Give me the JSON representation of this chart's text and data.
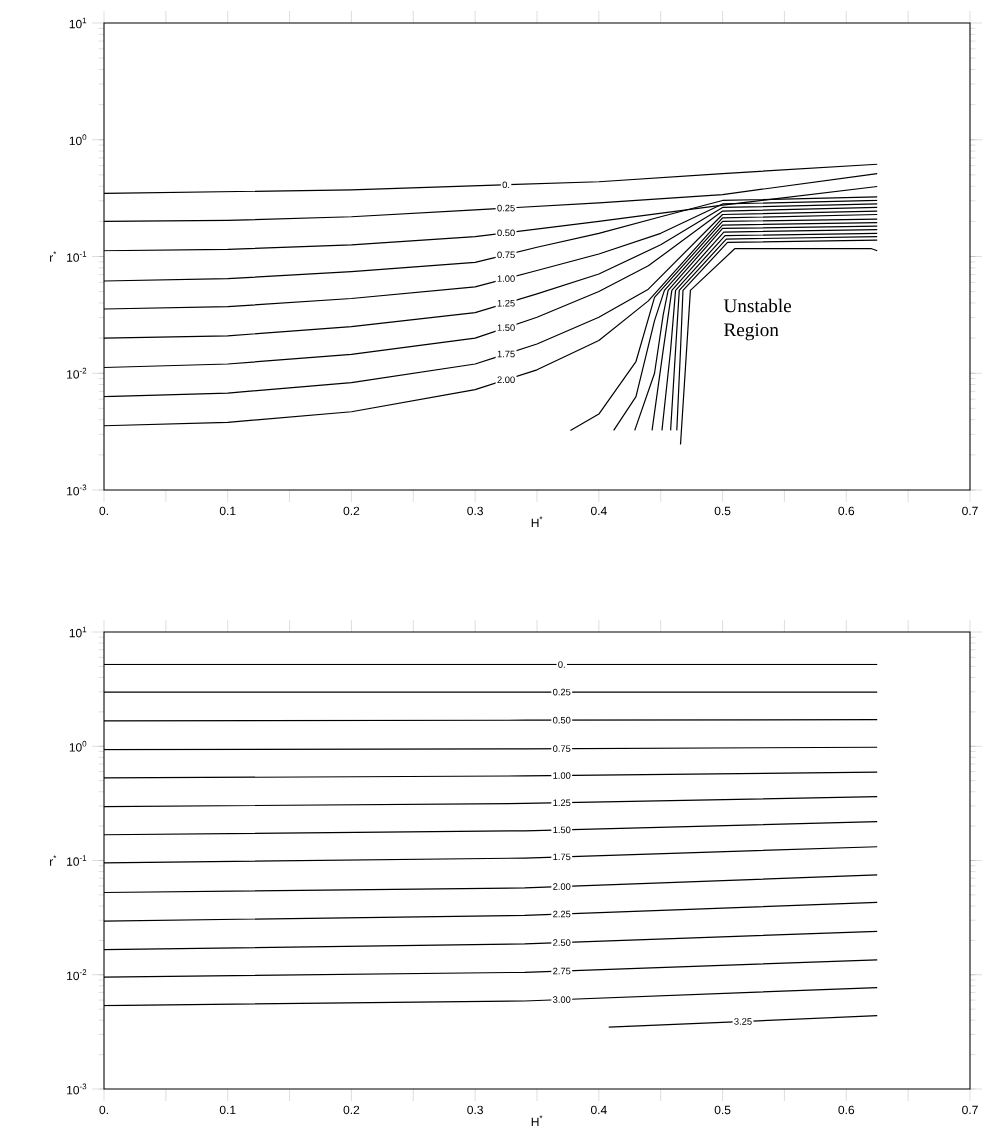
{
  "chart_data": [
    {
      "type": "line",
      "xlabel": "H$^{*}$",
      "ylabel": "r$^{*}$",
      "log": "y",
      "marker": "none",
      "xlim": [
        0,
        0.7
      ],
      "ylim": [
        0.001,
        10
      ],
      "xticks": [
        {
          "value": 0,
          "label": "0."
        },
        {
          "value": 0.05,
          "label": null
        },
        0.1,
        {
          "value": 0.15,
          "label": null
        },
        0.2,
        {
          "value": 0.25,
          "label": null
        },
        0.3,
        {
          "value": 0.35,
          "label": null
        },
        0.4,
        {
          "value": 0.45,
          "label": null
        },
        0.5,
        {
          "value": 0.55,
          "label": null
        },
        0.6,
        {
          "value": 0.65,
          "label": null
        },
        0.7
      ],
      "yticks": [
        {
          "value": 0.001,
          "label": "10$^{-3}$"
        },
        {
          "value": 0.01,
          "label": "10$^{-2}$"
        },
        {
          "value": 0.1,
          "label": "10$^{-1}$"
        },
        {
          "value": 1,
          "label": "10$^{0}$"
        },
        {
          "value": 10,
          "label": "10$^{1}$"
        }
      ],
      "annotations": [
        "Unstable Region"
      ],
      "series": [
        {
          "name": "0.",
          "color": "#000000",
          "x": [
            0,
            0.2,
            0.4,
            0.5,
            0.625
          ],
          "values": [
            0.347,
            0.372,
            0.437,
            0.513,
            0.617
          ]
        },
        {
          "name": "0.25",
          "color": "#000000",
          "x": [
            0,
            0.1,
            0.2,
            0.3,
            0.4,
            0.5,
            0.625
          ],
          "values": [
            0.2,
            0.204,
            0.219,
            0.251,
            0.288,
            0.339,
            0.513
          ]
        },
        {
          "name": "0.50",
          "color": "#000000",
          "x": [
            0,
            0.1,
            0.2,
            0.3,
            0.4,
            0.5,
            0.625
          ],
          "values": [
            0.112,
            0.115,
            0.126,
            0.148,
            0.2,
            0.275,
            0.398
          ]
        },
        {
          "name": "0.75",
          "color": "#000000",
          "x": [
            0,
            0.1,
            0.2,
            0.3,
            0.35,
            0.4,
            0.45,
            0.5,
            0.625
          ],
          "values": [
            0.0617,
            0.0646,
            0.0741,
            0.0891,
            0.12,
            0.158,
            0.219,
            0.302,
            0.324
          ]
        },
        {
          "name": "1.00",
          "color": "#000000",
          "x": [
            0,
            0.1,
            0.2,
            0.3,
            0.35,
            0.4,
            0.45,
            0.5,
            0.625
          ],
          "values": [
            0.0355,
            0.0372,
            0.0437,
            0.055,
            0.0759,
            0.105,
            0.158,
            0.282,
            0.302
          ]
        },
        {
          "name": "1.25",
          "color": "#000000",
          "x": [
            0,
            0.1,
            0.2,
            0.3,
            0.35,
            0.4,
            0.45,
            0.5,
            0.625
          ],
          "values": [
            0.02,
            0.0209,
            0.0251,
            0.0331,
            0.0479,
            0.0708,
            0.126,
            0.263,
            0.282
          ]
        },
        {
          "name": "1.50",
          "color": "#000000",
          "x": [
            0,
            0.1,
            0.2,
            0.3,
            0.35,
            0.4,
            0.44,
            0.5,
            0.625
          ],
          "values": [
            0.0112,
            0.012,
            0.0145,
            0.02,
            0.0302,
            0.0501,
            0.0832,
            0.245,
            0.263
          ]
        },
        {
          "name": "1.75",
          "color": "#000000",
          "x": [
            0,
            0.1,
            0.2,
            0.3,
            0.35,
            0.4,
            0.44,
            0.5,
            0.625
          ],
          "values": [
            0.00631,
            0.00676,
            0.00832,
            0.012,
            0.0178,
            0.0302,
            0.0525,
            0.229,
            0.245
          ]
        },
        {
          "name": "2.00",
          "color": "#000000",
          "x": [
            0,
            0.1,
            0.2,
            0.3,
            0.35,
            0.4,
            0.44,
            0.5,
            0.625
          ],
          "values": [
            0.00355,
            0.0038,
            0.00468,
            0.00724,
            0.0107,
            0.0191,
            0.0417,
            0.214,
            0.229
          ]
        },
        {
          "color": "#000000",
          "x": [
            0.377,
            0.4,
            0.43,
            0.445,
            0.5,
            0.625
          ],
          "values": [
            0.00324,
            0.00447,
            0.0126,
            0.0447,
            0.2,
            0.209
          ]
        },
        {
          "color": "#000000",
          "x": [
            0.412,
            0.43,
            0.445,
            0.453,
            0.5,
            0.625
          ],
          "values": [
            0.00324,
            0.00631,
            0.0282,
            0.0513,
            0.186,
            0.195
          ]
        },
        {
          "color": "#000000",
          "x": [
            0.429,
            0.445,
            0.452,
            0.456,
            0.5,
            0.625
          ],
          "values": [
            0.00324,
            0.01,
            0.0316,
            0.0513,
            0.174,
            0.182
          ]
        },
        {
          "color": "#000000",
          "x": [
            0.443,
            0.452,
            0.459,
            0.501,
            0.625
          ],
          "values": [
            0.00324,
            0.0158,
            0.0513,
            0.162,
            0.17
          ]
        },
        {
          "color": "#000000",
          "x": [
            0.451,
            0.458,
            0.462,
            0.502,
            0.625
          ],
          "values": [
            0.00324,
            0.0158,
            0.0513,
            0.151,
            0.158
          ]
        },
        {
          "color": "#000000",
          "x": [
            0.458,
            0.462,
            0.465,
            0.503,
            0.625
          ],
          "values": [
            0.00324,
            0.0158,
            0.0513,
            0.141,
            0.148
          ]
        },
        {
          "color": "#000000",
          "x": [
            0.463,
            0.466,
            0.468,
            0.504,
            0.625
          ],
          "values": [
            0.00324,
            0.0158,
            0.0513,
            0.132,
            0.138
          ]
        },
        {
          "color": "#000000",
          "x": [
            0.466,
            0.474,
            0.51,
            0.62,
            0.625
          ],
          "values": [
            0.00245,
            0.0513,
            0.117,
            0.117,
            0.112
          ]
        }
      ]
    },
    {
      "type": "line",
      "xlabel": "H$^{*}$",
      "ylabel": "r$^{*}$",
      "log": "y",
      "marker": "none",
      "xlim": [
        0,
        0.7
      ],
      "ylim": [
        0.001,
        10
      ],
      "xticks": [
        {
          "value": 0,
          "label": "0."
        },
        {
          "value": 0.05,
          "label": null
        },
        0.1,
        {
          "value": 0.15,
          "label": null
        },
        0.2,
        {
          "value": 0.25,
          "label": null
        },
        0.3,
        {
          "value": 0.35,
          "label": null
        },
        0.4,
        {
          "value": 0.45,
          "label": null
        },
        0.5,
        {
          "value": 0.55,
          "label": null
        },
        0.6,
        {
          "value": 0.65,
          "label": null
        },
        0.7
      ],
      "yticks": [
        {
          "value": 0.001,
          "label": "10$^{-3}$"
        },
        {
          "value": 0.01,
          "label": "10$^{-2}$"
        },
        {
          "value": 0.1,
          "label": "10$^{-1}$"
        },
        {
          "value": 1,
          "label": "10$^{0}$"
        },
        {
          "value": 10,
          "label": "10$^{1}$"
        }
      ],
      "series": [
        {
          "name": "0.",
          "color": "#000000",
          "x": [
            0,
            0.34,
            0.625
          ],
          "values": [
            5.2,
            5.2,
            5.2
          ]
        },
        {
          "name": "0.25",
          "color": "#000000",
          "x": [
            0,
            0.34,
            0.625
          ],
          "values": [
            2.98,
            2.98,
            2.98
          ]
        },
        {
          "name": "0.50",
          "color": "#000000",
          "x": [
            0,
            0.34,
            0.625
          ],
          "values": [
            1.67,
            1.69,
            1.71
          ]
        },
        {
          "name": "0.75",
          "color": "#000000",
          "x": [
            0,
            0.34,
            0.625
          ],
          "values": [
            0.933,
            0.95,
            0.98
          ]
        },
        {
          "name": "1.00",
          "color": "#000000",
          "x": [
            0,
            0.34,
            0.625
          ],
          "values": [
            0.528,
            0.55,
            0.593
          ]
        },
        {
          "name": "1.25",
          "color": "#000000",
          "x": [
            0,
            0.34,
            0.625
          ],
          "values": [
            0.296,
            0.316,
            0.362
          ]
        },
        {
          "name": "1.50",
          "color": "#000000",
          "x": [
            0,
            0.34,
            0.625
          ],
          "values": [
            0.168,
            0.182,
            0.219
          ]
        },
        {
          "name": "1.75",
          "color": "#000000",
          "x": [
            0,
            0.34,
            0.625
          ],
          "values": [
            0.0955,
            0.105,
            0.132
          ]
        },
        {
          "name": "2.00",
          "color": "#000000",
          "x": [
            0,
            0.34,
            0.625
          ],
          "values": [
            0.0525,
            0.0575,
            0.0748
          ]
        },
        {
          "name": "2.25",
          "color": "#000000",
          "x": [
            0,
            0.34,
            0.625
          ],
          "values": [
            0.0295,
            0.0331,
            0.043
          ]
        },
        {
          "name": "2.50",
          "color": "#000000",
          "x": [
            0,
            0.34,
            0.625
          ],
          "values": [
            0.0166,
            0.0186,
            0.024
          ]
        },
        {
          "name": "2.75",
          "color": "#000000",
          "x": [
            0,
            0.34,
            0.625
          ],
          "values": [
            0.00955,
            0.0105,
            0.0135
          ]
        },
        {
          "name": "3.00",
          "color": "#000000",
          "x": [
            0,
            0.34,
            0.625
          ],
          "values": [
            0.00537,
            0.00589,
            0.00773
          ]
        },
        {
          "name": "3.25",
          "color": "#000000",
          "x": [
            0.408,
            0.625
          ],
          "values": [
            0.00348,
            0.00438
          ]
        }
      ]
    }
  ]
}
